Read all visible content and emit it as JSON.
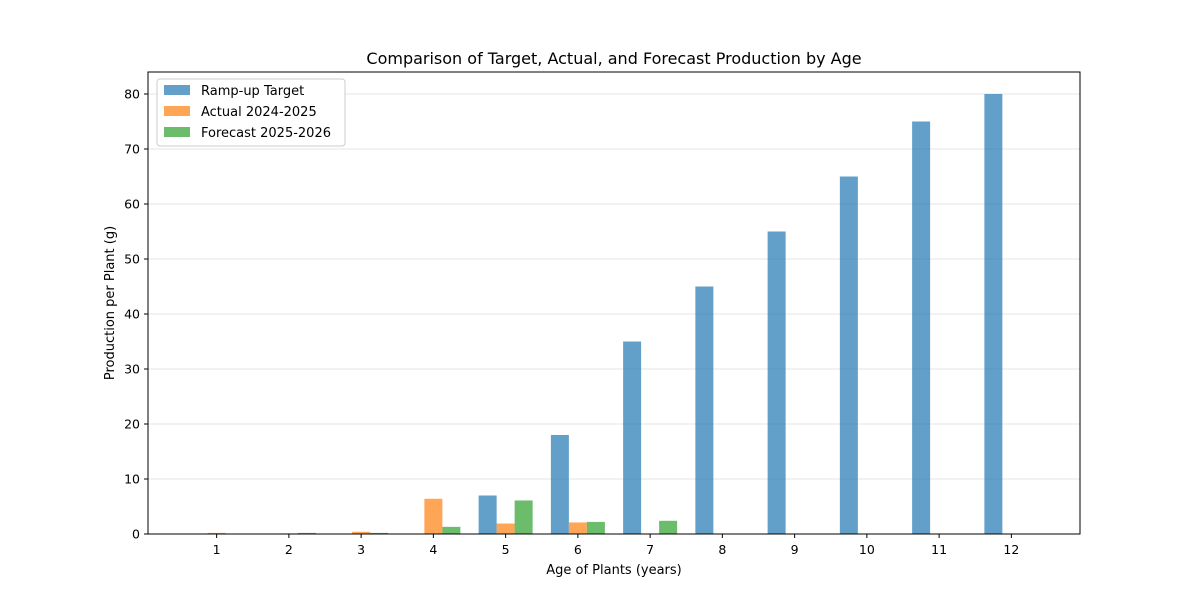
{
  "chart_data": {
    "type": "bar",
    "title": "Comparison of Target, Actual, and Forecast Production by Age",
    "xlabel": "Age of Plants (years)",
    "ylabel": "Production per Plant (g)",
    "categories": [
      "1",
      "2",
      "3",
      "4",
      "5",
      "6",
      "7",
      "8",
      "9",
      "10",
      "11",
      "12"
    ],
    "series": [
      {
        "name": "Ramp-up Target",
        "color": "#1f77b4",
        "values": [
          0,
          0,
          0,
          0,
          7,
          18,
          35,
          45,
          55,
          65,
          75,
          80
        ]
      },
      {
        "name": "Actual 2024-2025",
        "color": "#ff7f0e",
        "values": [
          0.2,
          0.1,
          0.4,
          6.4,
          1.9,
          2.1,
          0,
          0,
          0,
          0,
          0,
          0
        ]
      },
      {
        "name": "Forecast 2025-2026",
        "color": "#2ca02c",
        "values": [
          0,
          0.2,
          0.2,
          1.3,
          6.1,
          2.2,
          2.4,
          0,
          0,
          0,
          0,
          0
        ]
      }
    ],
    "ylim": [
      0,
      84
    ],
    "yticks": [
      0,
      10,
      20,
      30,
      40,
      50,
      60,
      70,
      80
    ],
    "grid": "y-axis, light",
    "legend": "upper-left",
    "bar_opacity": 0.7
  }
}
